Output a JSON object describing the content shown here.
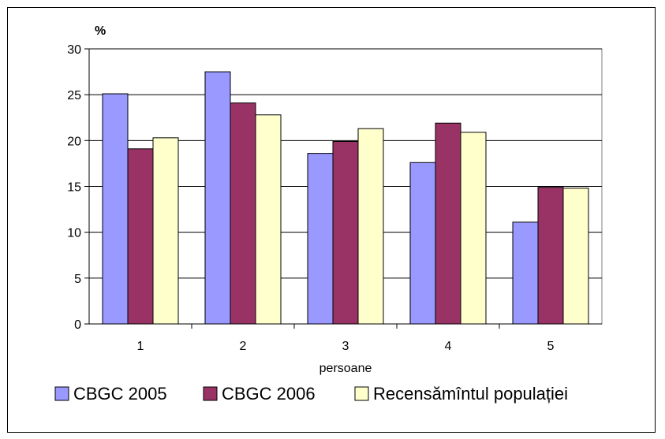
{
  "chart_data": {
    "type": "bar",
    "ylabel": "%",
    "xlabel": "persoane",
    "categories": [
      "1",
      "2",
      "3",
      "4",
      "5"
    ],
    "ylim": [
      0,
      30
    ],
    "yticks": [
      "0",
      "5",
      "10",
      "15",
      "20",
      "25",
      "30"
    ],
    "grid": true,
    "legend_position": "bottom",
    "series": [
      {
        "name": "CBGC 2005",
        "color": "#9999FF",
        "values": [
          25.1,
          27.5,
          18.6,
          17.6,
          11.1
        ]
      },
      {
        "name": "CBGC 2006",
        "color": "#993366",
        "values": [
          19.1,
          24.1,
          19.9,
          21.9,
          14.9
        ]
      },
      {
        "name": "Recensămîntul populației",
        "color": "#FFFFCC",
        "values": [
          20.3,
          22.8,
          21.3,
          20.9,
          14.8
        ]
      }
    ]
  }
}
